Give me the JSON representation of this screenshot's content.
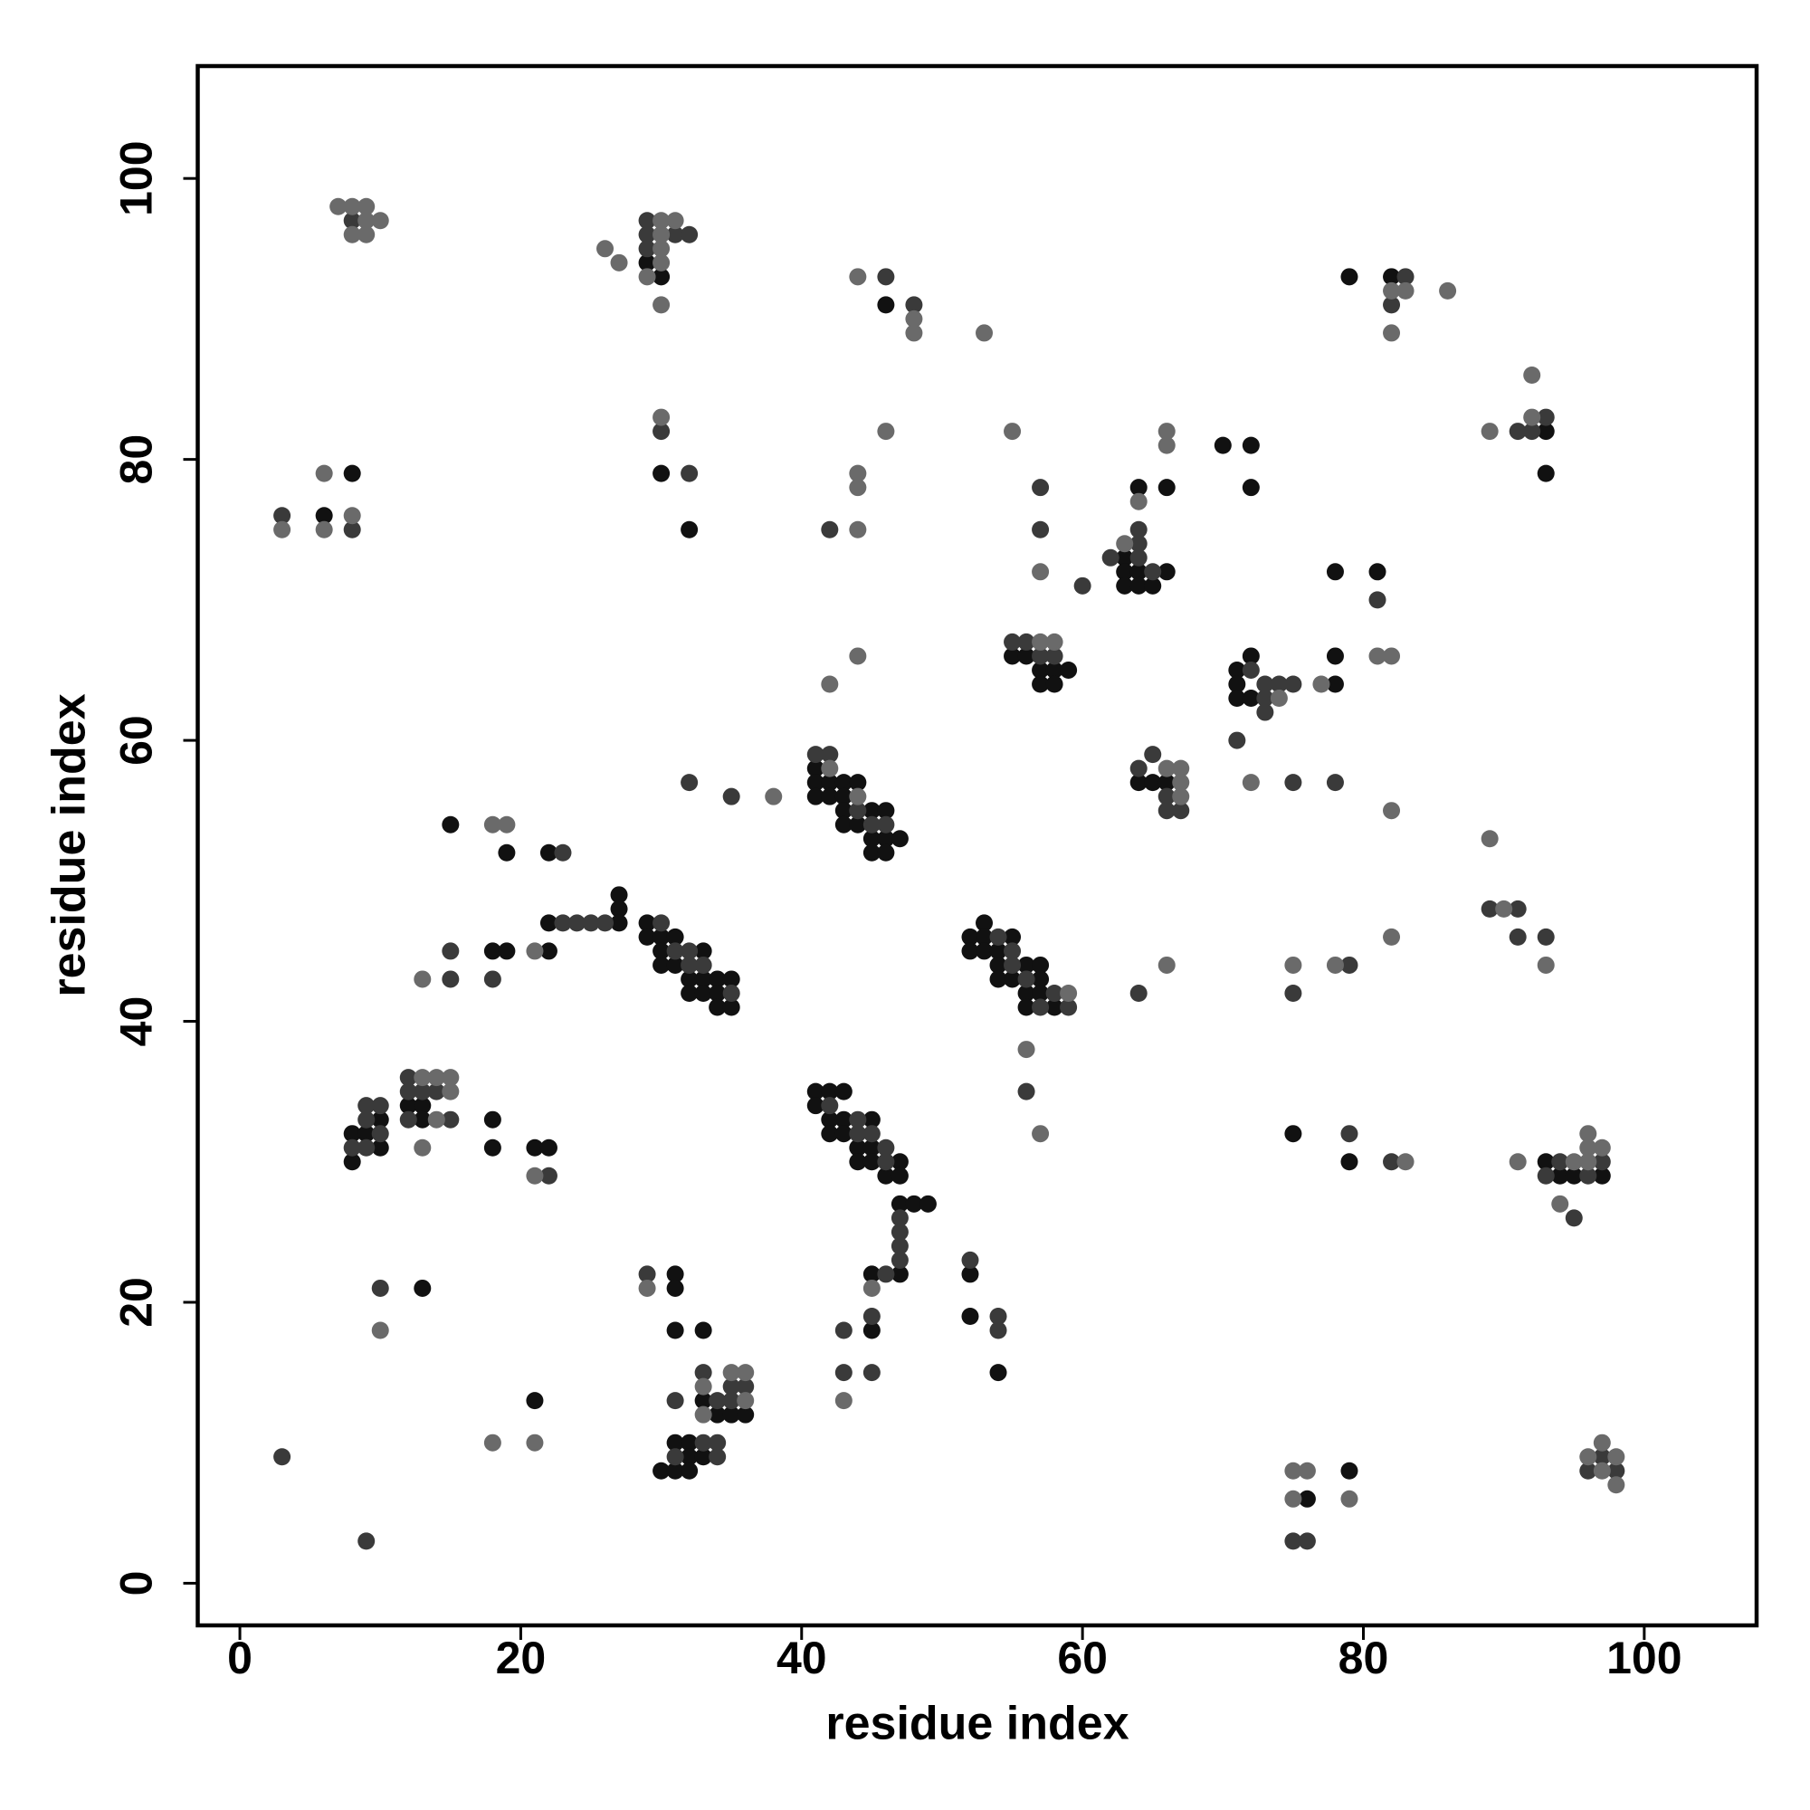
{
  "chart_data": {
    "type": "scatter",
    "xlabel": "residue index",
    "ylabel": "residue index",
    "xlim": [
      -3,
      108
    ],
    "ylim": [
      -3,
      108
    ],
    "xticks": [
      0,
      20,
      40,
      60,
      80,
      100
    ],
    "yticks": [
      0,
      20,
      40,
      60,
      80,
      100
    ],
    "series": [
      {
        "color": "#111111",
        "x": [
          6,
          8,
          29,
          30,
          30,
          32,
          46,
          64,
          66,
          63,
          63,
          64,
          66,
          63,
          64,
          65,
          70,
          72,
          72,
          79,
          82,
          93,
          93,
          78,
          81,
          78,
          78,
          71,
          72,
          71,
          71,
          72,
          55,
          56,
          57,
          58,
          59,
          57,
          58,
          64,
          65,
          66,
          41,
          41,
          42,
          43,
          44,
          41,
          42,
          43,
          43,
          45,
          46,
          43,
          44,
          45,
          46,
          47,
          45,
          46,
          15,
          19,
          22,
          27,
          27,
          22,
          27,
          22,
          18,
          19,
          29,
          29,
          30,
          31,
          30,
          33,
          30,
          31,
          32,
          33,
          34,
          35,
          32,
          33,
          34,
          34,
          35,
          52,
          53,
          52,
          53,
          55,
          53,
          54,
          54,
          56,
          57,
          54,
          55,
          57,
          56,
          57,
          56,
          58,
          8,
          10,
          9,
          10,
          8,
          12,
          13,
          13,
          18,
          18,
          21,
          22,
          41,
          42,
          43,
          41,
          42,
          43,
          42,
          43,
          45,
          44,
          45,
          44,
          45,
          47,
          46,
          47,
          47,
          48,
          49,
          47,
          45,
          45,
          52,
          52,
          54,
          13,
          31,
          31,
          31,
          33,
          21,
          33,
          34,
          35,
          36,
          31,
          32,
          32,
          33,
          30,
          31,
          32,
          75,
          79,
          93,
          94,
          95,
          97,
          79,
          76
        ],
        "values": [
          76,
          79,
          94,
          93,
          79,
          75,
          91,
          78,
          78,
          73,
          72,
          72,
          72,
          71,
          71,
          71,
          81,
          81,
          78,
          93,
          93,
          82,
          79,
          72,
          72,
          66,
          64,
          65,
          66,
          64,
          63,
          63,
          66,
          66,
          65,
          65,
          65,
          64,
          64,
          57,
          57,
          57,
          58,
          57,
          57,
          57,
          57,
          56,
          56,
          56,
          55,
          55,
          55,
          54,
          54,
          53,
          53,
          53,
          52,
          52,
          54,
          52,
          52,
          49,
          48,
          47,
          47,
          45,
          45,
          45,
          47,
          46,
          46,
          46,
          45,
          45,
          44,
          44,
          43,
          43,
          43,
          43,
          42,
          42,
          42,
          41,
          41,
          46,
          47,
          45,
          46,
          46,
          45,
          45,
          44,
          44,
          44,
          43,
          43,
          43,
          42,
          42,
          41,
          41,
          32,
          33,
          32,
          31,
          30,
          34,
          34,
          33,
          33,
          31,
          31,
          31,
          35,
          35,
          35,
          34,
          33,
          33,
          32,
          32,
          33,
          31,
          31,
          30,
          30,
          30,
          29,
          29,
          27,
          27,
          27,
          22,
          22,
          18,
          22,
          19,
          15,
          21,
          22,
          21,
          18,
          18,
          13,
          13,
          12,
          12,
          12,
          10,
          10,
          9,
          9,
          8,
          8,
          8,
          32,
          30,
          30,
          29,
          29,
          29,
          8,
          6
        ]
      },
      {
        "color": "#3a3a3a",
        "x": [
          8,
          3,
          8,
          29,
          29,
          31,
          32,
          29,
          30,
          32,
          46,
          48,
          42,
          57,
          57,
          60,
          62,
          64,
          64,
          64,
          65,
          83,
          82,
          91,
          93,
          92,
          81,
          72,
          73,
          73,
          73,
          74,
          75,
          71,
          75,
          78,
          55,
          56,
          57,
          58,
          64,
          65,
          66,
          66,
          67,
          41,
          42,
          44,
          45,
          46,
          32,
          35,
          23,
          89,
          91,
          91,
          93,
          75,
          79,
          64,
          23,
          24,
          25,
          26,
          15,
          15,
          18,
          30,
          31,
          32,
          32,
          33,
          35,
          54,
          55,
          55,
          56,
          58,
          57,
          59,
          56,
          9,
          10,
          9,
          8,
          10,
          9,
          12,
          12,
          13,
          14,
          12,
          15,
          22,
          42,
          44,
          44,
          45,
          46,
          46,
          47,
          47,
          47,
          47,
          46,
          45,
          52,
          54,
          54,
          43,
          43,
          45,
          10,
          29,
          31,
          33,
          35,
          36,
          34,
          35,
          33,
          34,
          31,
          34,
          79,
          82,
          94,
          97,
          93,
          96,
          95,
          75,
          76,
          97,
          96,
          98,
          3,
          9
        ],
        "values": [
          97,
          76,
          75,
          97,
          96,
          96,
          96,
          95,
          82,
          79,
          93,
          91,
          75,
          78,
          75,
          71,
          73,
          75,
          74,
          73,
          72,
          93,
          91,
          82,
          83,
          82,
          70,
          65,
          64,
          63,
          62,
          64,
          64,
          60,
          57,
          57,
          67,
          67,
          66,
          66,
          58,
          59,
          56,
          55,
          55,
          59,
          59,
          55,
          54,
          54,
          57,
          56,
          52,
          48,
          48,
          46,
          46,
          42,
          44,
          42,
          47,
          47,
          47,
          47,
          45,
          43,
          43,
          47,
          45,
          45,
          44,
          44,
          42,
          46,
          45,
          44,
          43,
          42,
          41,
          41,
          35,
          34,
          34,
          33,
          31,
          32,
          31,
          36,
          35,
          35,
          35,
          33,
          33,
          29,
          34,
          33,
          32,
          32,
          31,
          30,
          26,
          25,
          24,
          23,
          22,
          19,
          23,
          19,
          18,
          18,
          15,
          15,
          21,
          22,
          13,
          15,
          14,
          14,
          13,
          13,
          10,
          10,
          9,
          9,
          32,
          30,
          30,
          30,
          29,
          29,
          26,
          3,
          3,
          9,
          8,
          8,
          9,
          3
        ]
      },
      {
        "color": "#6a6a6a",
        "x": [
          7,
          8,
          9,
          9,
          10,
          8,
          9,
          3,
          6,
          6,
          8,
          26,
          27,
          30,
          31,
          30,
          30,
          30,
          29,
          30,
          30,
          44,
          48,
          48,
          53,
          46,
          44,
          44,
          44,
          55,
          57,
          63,
          64,
          66,
          66,
          82,
          83,
          86,
          82,
          92,
          89,
          92,
          81,
          82,
          77,
          74,
          72,
          82,
          57,
          58,
          42,
          44,
          66,
          67,
          67,
          67,
          42,
          44,
          38,
          18,
          19,
          89,
          90,
          93,
          82,
          75,
          78,
          66,
          21,
          13,
          59,
          56,
          57,
          13,
          14,
          15,
          15,
          14,
          13,
          21,
          45,
          43,
          10,
          29,
          18,
          21,
          35,
          36,
          33,
          36,
          33,
          83,
          91,
          95,
          96,
          96,
          97,
          96,
          94,
          75,
          76,
          75,
          79,
          97,
          96,
          98,
          97,
          98
        ],
        "values": [
          98,
          98,
          98,
          97,
          97,
          96,
          96,
          75,
          79,
          75,
          76,
          95,
          94,
          97,
          97,
          96,
          95,
          94,
          93,
          91,
          83,
          93,
          90,
          89,
          89,
          82,
          79,
          78,
          75,
          82,
          72,
          74,
          77,
          81,
          82,
          92,
          92,
          92,
          89,
          86,
          82,
          83,
          66,
          66,
          64,
          63,
          57,
          55,
          67,
          67,
          64,
          66,
          58,
          58,
          57,
          56,
          58,
          56,
          56,
          54,
          54,
          53,
          48,
          44,
          46,
          44,
          44,
          44,
          45,
          43,
          42,
          38,
          32,
          36,
          36,
          36,
          35,
          33,
          31,
          29,
          21,
          13,
          18,
          21,
          10,
          10,
          15,
          15,
          14,
          13,
          12,
          30,
          30,
          30,
          32,
          31,
          31,
          30,
          27,
          8,
          8,
          6,
          6,
          10,
          9,
          9,
          8,
          7
        ]
      }
    ]
  }
}
